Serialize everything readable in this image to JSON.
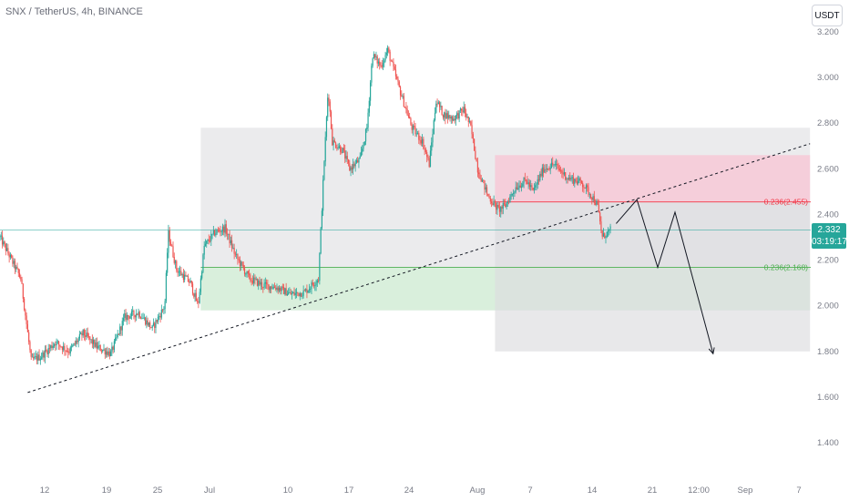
{
  "title": "SNX / TetherUS, 4h, BINANCE",
  "currency_label": "USDT",
  "colors": {
    "up": "#26a69a",
    "down": "#ef5350",
    "stop_zone": "#f7c9d6",
    "target_zone": "#d6f0d8",
    "range_box": "#e8e8ea",
    "fib_red": "#f23645",
    "fib_green": "#4caf50",
    "trendline": "#131722"
  },
  "current_price": {
    "value": "2.332",
    "countdown": "03:19:17"
  },
  "chart_data": {
    "type": "candlestick",
    "title": "SNX / TetherUS, 4h, BINANCE",
    "y_axis": {
      "min": 1.3,
      "max": 3.3,
      "ticks": [
        "3.200",
        "3.000",
        "2.800",
        "2.600",
        "2.400",
        "2.200",
        "2.000",
        "1.800",
        "1.600",
        "1.400"
      ]
    },
    "x_axis": {
      "ticks": [
        "12",
        "19",
        "25",
        "Jul",
        "10",
        "17",
        "24",
        "Aug",
        "7",
        "14",
        "21",
        "12:00",
        "Sep",
        "7"
      ]
    },
    "grid": false,
    "anchors": [
      {
        "d": 0,
        "p": 2.3
      },
      {
        "d": 3,
        "p": 2.12
      },
      {
        "d": 4.5,
        "p": 1.76
      },
      {
        "d": 6,
        "p": 1.78
      },
      {
        "d": 8,
        "p": 1.84
      },
      {
        "d": 10,
        "p": 1.8
      },
      {
        "d": 12,
        "p": 1.88
      },
      {
        "d": 14,
        "p": 1.82
      },
      {
        "d": 16,
        "p": 1.79
      },
      {
        "d": 18,
        "p": 1.95
      },
      {
        "d": 20,
        "p": 1.97
      },
      {
        "d": 22,
        "p": 1.9
      },
      {
        "d": 23.8,
        "p": 2.0
      },
      {
        "d": 24.3,
        "p": 2.32
      },
      {
        "d": 25.5,
        "p": 2.16
      },
      {
        "d": 27.5,
        "p": 2.1
      },
      {
        "d": 28.6,
        "p": 2.0
      },
      {
        "d": 29.5,
        "p": 2.26
      },
      {
        "d": 31,
        "p": 2.32
      },
      {
        "d": 32.5,
        "p": 2.34
      },
      {
        "d": 34,
        "p": 2.22
      },
      {
        "d": 36,
        "p": 2.12
      },
      {
        "d": 38,
        "p": 2.09
      },
      {
        "d": 40,
        "p": 2.08
      },
      {
        "d": 42,
        "p": 2.05
      },
      {
        "d": 44,
        "p": 2.06
      },
      {
        "d": 46,
        "p": 2.12
      },
      {
        "d": 46.8,
        "p": 2.62
      },
      {
        "d": 47.4,
        "p": 2.95
      },
      {
        "d": 48,
        "p": 2.72
      },
      {
        "d": 49.5,
        "p": 2.68
      },
      {
        "d": 50.5,
        "p": 2.6
      },
      {
        "d": 52,
        "p": 2.64
      },
      {
        "d": 53,
        "p": 2.78
      },
      {
        "d": 53.8,
        "p": 3.1
      },
      {
        "d": 55,
        "p": 3.05
      },
      {
        "d": 56,
        "p": 3.12
      },
      {
        "d": 57,
        "p": 3.02
      },
      {
        "d": 58,
        "p": 2.92
      },
      {
        "d": 59.5,
        "p": 2.78
      },
      {
        "d": 61,
        "p": 2.72
      },
      {
        "d": 62,
        "p": 2.62
      },
      {
        "d": 63,
        "p": 2.9
      },
      {
        "d": 64,
        "p": 2.84
      },
      {
        "d": 65.5,
        "p": 2.82
      },
      {
        "d": 67,
        "p": 2.86
      },
      {
        "d": 68,
        "p": 2.78
      },
      {
        "d": 69,
        "p": 2.6
      },
      {
        "d": 70.5,
        "p": 2.48
      },
      {
        "d": 72,
        "p": 2.42
      },
      {
        "d": 73,
        "p": 2.44
      },
      {
        "d": 74.5,
        "p": 2.52
      },
      {
        "d": 76,
        "p": 2.55
      },
      {
        "d": 77,
        "p": 2.5
      },
      {
        "d": 78.5,
        "p": 2.6
      },
      {
        "d": 80,
        "p": 2.62
      },
      {
        "d": 82,
        "p": 2.56
      },
      {
        "d": 84,
        "p": 2.54
      },
      {
        "d": 85.5,
        "p": 2.48
      },
      {
        "d": 86.3,
        "p": 2.44
      },
      {
        "d": 87,
        "p": 2.3
      },
      {
        "d": 88.2,
        "p": 2.332
      }
    ],
    "zones": [
      {
        "name": "range_box",
        "d0": 29,
        "d1": 117,
        "p0": 1.98,
        "p1": 2.78
      },
      {
        "name": "stop_zone",
        "d0": 71.5,
        "d1": 117,
        "p0": 2.455,
        "p1": 2.66
      },
      {
        "name": "target_zone",
        "d0": 29,
        "d1": 117,
        "p0": 1.98,
        "p1": 2.168
      },
      {
        "name": "lower_box",
        "d0": 71.5,
        "d1": 117,
        "p0": 1.8,
        "p1": 2.455
      }
    ],
    "levels": [
      {
        "label": "0.236(2.455)",
        "price": 2.455,
        "d0": 71.5,
        "d1": 117,
        "color": "#f23645"
      },
      {
        "label": "0.236(2.168)",
        "price": 2.168,
        "d0": 29,
        "d1": 117,
        "color": "#4caf50"
      }
    ],
    "trendline": {
      "d0": 4,
      "p0": 1.62,
      "d1": 117,
      "p1": 2.71
    },
    "current_line": {
      "price": 2.332
    },
    "projection": [
      {
        "d": 89,
        "p": 2.36
      },
      {
        "d": 92,
        "p": 2.465
      },
      {
        "d": 95,
        "p": 2.168
      },
      {
        "d": 97.5,
        "p": 2.41
      },
      {
        "d": 103,
        "p": 1.79
      }
    ]
  }
}
